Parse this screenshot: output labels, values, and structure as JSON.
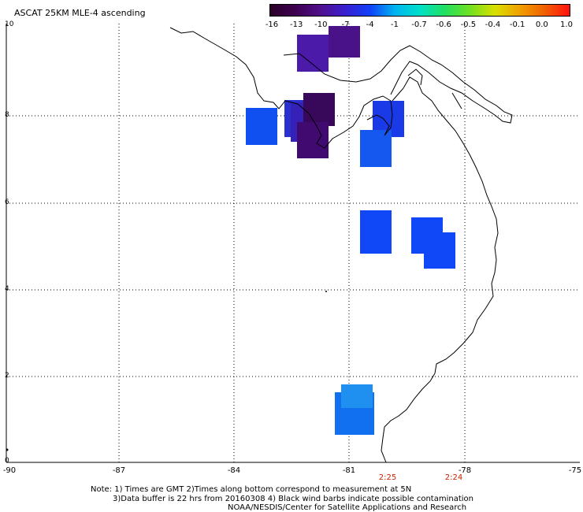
{
  "title": "ASCAT 25KM MLE-4 ascending",
  "colorbar": {
    "labels": [
      "-16",
      "-13",
      "-10",
      "-7",
      "-4",
      "-1",
      "-0.7",
      "-0.6",
      "-0.5",
      "-0.4",
      "-0.1",
      "0.0",
      "1.0"
    ],
    "colors": [
      "#2a0028",
      "#3d004f",
      "#50108a",
      "#3a1fcf",
      "#1040f8",
      "#00b4f0",
      "#00e0c8",
      "#20e060",
      "#70e020",
      "#d8e000",
      "#f0a000",
      "#f06000",
      "#ff1010"
    ]
  },
  "axes": {
    "x_ticks": [
      "-90",
      "-87",
      "-84",
      "-81",
      "-78",
      "-75"
    ],
    "y_ticks": [
      "10",
      "8",
      "6",
      "4",
      "2",
      "0"
    ]
  },
  "pass_times": [
    "2:25",
    "2:24"
  ],
  "notes": {
    "line1": "Note: 1) Times are GMT 2)Times along bottom correspond to measurement at 5N",
    "line2": "3)Data buffer is 22 hrs from 20160308 4) Black wind barbs indicate possible contamination",
    "line3": "NOAA/NESDIS/Center for Satellite Applications and Research"
  }
}
